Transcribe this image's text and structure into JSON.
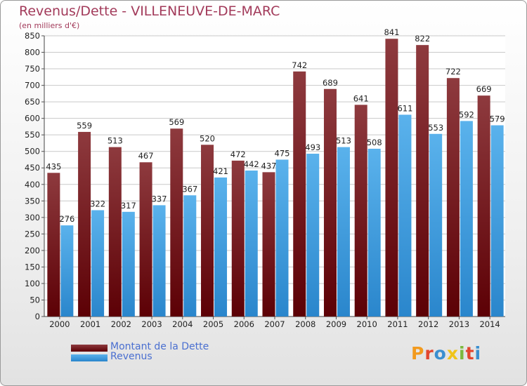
{
  "title": "Revenus/Dette - VILLENEUVE-DE-MARC",
  "subtitle": "(en milliers d'€)",
  "logo": "Proxiti",
  "colors": {
    "dette_top": "#8e3a3e",
    "dette_bottom": "#5c0005",
    "revenus_top": "#5ab2ec",
    "revenus_bottom": "#2a86cc",
    "title": "#a23a5a",
    "legend_text": "#4a6fd0"
  },
  "chart_data": {
    "type": "bar",
    "categories": [
      "2000",
      "2001",
      "2002",
      "2003",
      "2004",
      "2005",
      "2006",
      "2007",
      "2008",
      "2009",
      "2010",
      "2011",
      "2012",
      "2013",
      "2014"
    ],
    "series": [
      {
        "name": "Montant de la Dette",
        "values": [
          435,
          559,
          513,
          467,
          569,
          520,
          472,
          437,
          742,
          689,
          641,
          841,
          822,
          722,
          669
        ]
      },
      {
        "name": "Revenus",
        "values": [
          276,
          322,
          317,
          337,
          367,
          421,
          442,
          475,
          493,
          513,
          508,
          611,
          553,
          592,
          579
        ]
      }
    ],
    "ylim": [
      0,
      850
    ],
    "ytick_step": 50,
    "grid": true,
    "legend": "bottom-left"
  }
}
